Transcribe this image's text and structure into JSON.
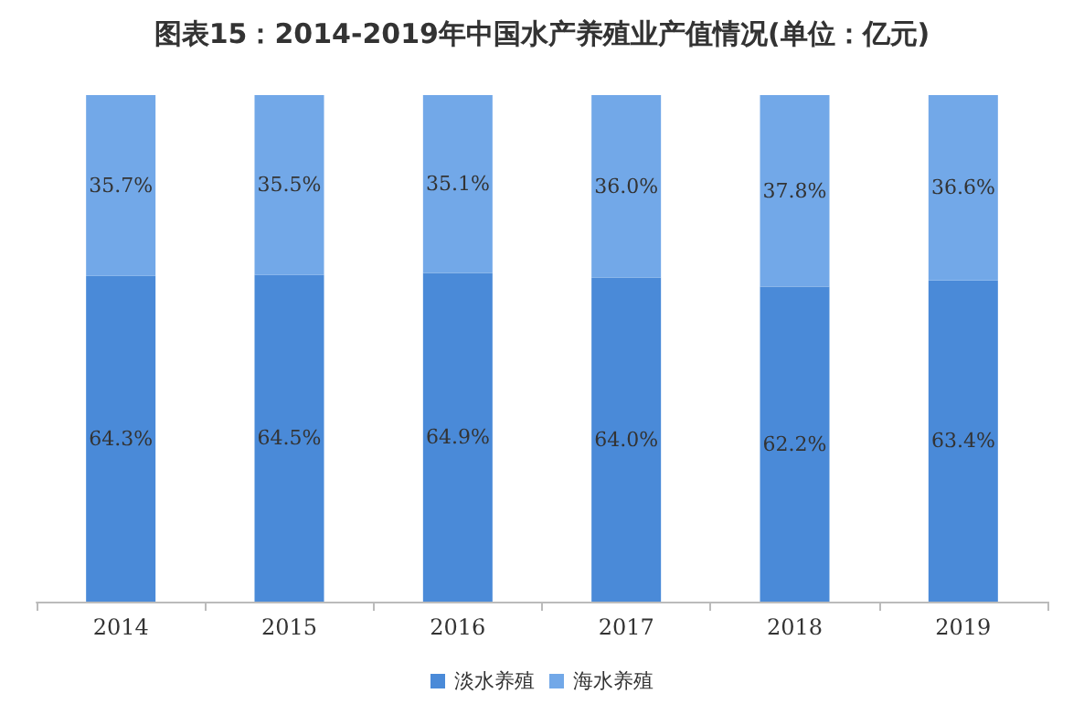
{
  "chart_data": {
    "type": "bar",
    "title": "图表15：2014-2019年中国水产养殖业产值情况(单位：亿元)",
    "categories": [
      "2014",
      "2015",
      "2016",
      "2017",
      "2018",
      "2019"
    ],
    "stacked": true,
    "legend": "bottom",
    "series": [
      {
        "name": "淡水养殖",
        "color": "#4a8ad8",
        "values": [
          64.3,
          64.5,
          64.9,
          64.0,
          62.2,
          63.4
        ],
        "value_labels": [
          "64.3%",
          "64.5%",
          "64.9%",
          "64.0%",
          "62.2%",
          "63.4%"
        ]
      },
      {
        "name": "海水养殖",
        "color": "#72a8e8",
        "values": [
          35.7,
          35.5,
          35.1,
          36.0,
          37.8,
          36.6
        ],
        "value_labels": [
          "35.7%",
          "35.5%",
          "35.1%",
          "36.0%",
          "37.8%",
          "36.6%"
        ]
      }
    ]
  }
}
